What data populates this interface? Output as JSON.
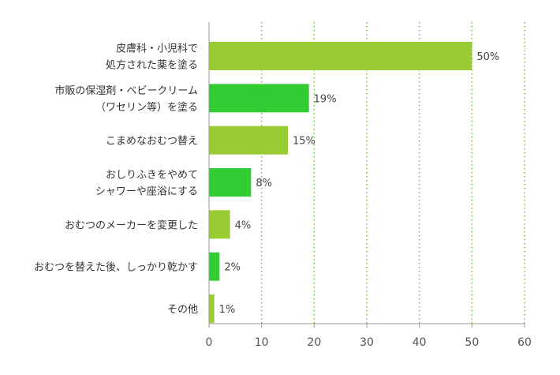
{
  "chart_data": {
    "type": "bar",
    "orientation": "horizontal",
    "categories": [
      [
        "皮膚科・小児科で",
        "処方された薬を塗る"
      ],
      [
        "市販の保湿剤・ベビークリーム",
        "（ワセリン等）を塗る"
      ],
      [
        "こまめなおむつ替え"
      ],
      [
        "おしりふきをやめて",
        "シャワーや座浴にする"
      ],
      [
        "おむつのメーカーを変更した"
      ],
      [
        "おむつを替えた後、しっかり乾かす"
      ],
      [
        "その他"
      ]
    ],
    "values": [
      50,
      19,
      15,
      8,
      4,
      2,
      1
    ],
    "value_labels": [
      "50%",
      "19%",
      "15%",
      "8%",
      "4%",
      "2%",
      "1%"
    ],
    "bar_colors": [
      "#99cc33",
      "#33cc33",
      "#99cc33",
      "#33cc33",
      "#99cc33",
      "#33cc33",
      "#99cc33"
    ],
    "xlim": [
      0,
      60
    ],
    "xticks": [
      0,
      10,
      20,
      30,
      40,
      50,
      60
    ],
    "grid": {
      "vertical": true,
      "style": "dotted",
      "color": "#66bb33"
    },
    "axis_color": "#999999",
    "title": "",
    "xlabel": "",
    "ylabel": ""
  }
}
